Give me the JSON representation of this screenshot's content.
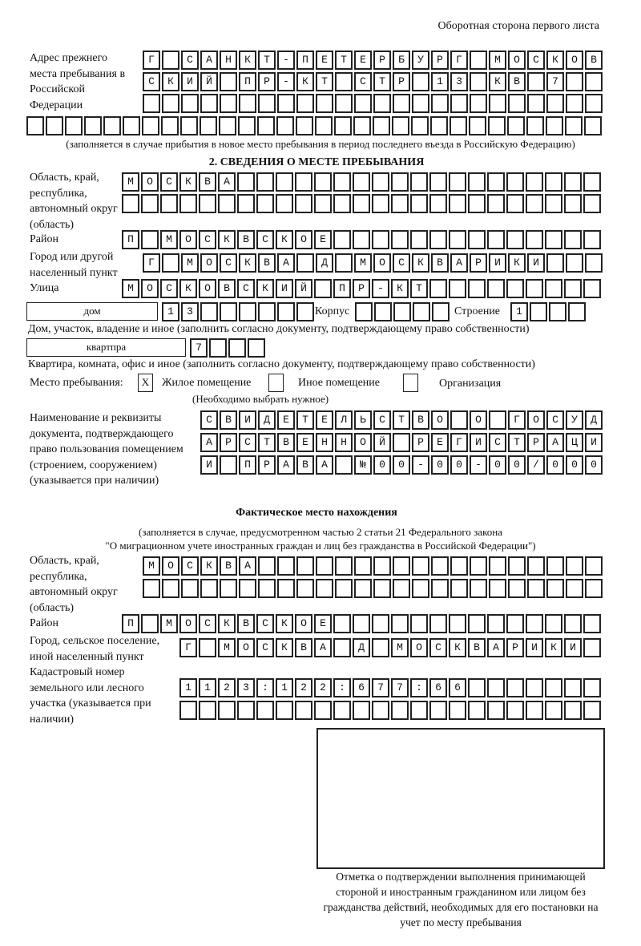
{
  "header": "Оборотная сторона первого листа",
  "prev_address": {
    "label": "Адрес прежнего места пребывания в Российской Федерации",
    "rows": [
      "Г САНКТ-ПЕТЕРБУРГ МОСКОВ",
      "СКИЙ ПР-КТ СТР 13 КВ 7",
      "",
      ""
    ],
    "note": "(заполняется в случае прибытия в новое место пребывания в период последнего въезда в Российскую Федерацию)"
  },
  "section2": {
    "title": "2. СВЕДЕНИЯ О МЕСТЕ ПРЕБЫВАНИЯ",
    "region_label": "Область, край, республика, автономный округ (область)",
    "region_rows": [
      "МОСКВА",
      ""
    ],
    "district_label": "Район",
    "district": "П МОСКВСКОЕ",
    "city_label": "Город или другой населенный пункт",
    "city": "Г МОСКВА Д МОСКВАРИКИ",
    "street_label": "Улица",
    "street": "МОСКОВСКИЙ ПР-КТ",
    "house_type": "дом",
    "house_number": "13",
    "korpus_label": "Корпус",
    "korpus": "",
    "building_label": "Строение",
    "building": "1",
    "house_note": "Дом, участок, владение и иное (заполнить согласно документу, подтверждающему право собственности)",
    "apt_type": "квартпра",
    "apt_number": "7",
    "apt_note": "Квартира, комната, офис и иное (заполнить согласно документу, подтверждающему право собственности)",
    "place_label": "Место пребывания:",
    "place_options": [
      {
        "label": "Жилое помещение",
        "checked": true,
        "mark": "X"
      },
      {
        "label": "Иное помещение",
        "checked": false,
        "mark": ""
      },
      {
        "label": "Организация",
        "checked": false,
        "mark": ""
      }
    ],
    "place_note": "(Необходимо выбрать нужное)",
    "doc_label": "Наименование и реквизиты документа, подтверждающего право пользования помещением (строением, сооружением) (указывается при наличии)",
    "doc_rows": [
      "СВИДЕТЕЛЬСТВО О ГОСУД",
      "АРСТВЕННОЙ РЕГИСТРАЦИ",
      "И ПРАВА №00-00-00/000"
    ]
  },
  "actual": {
    "title": "Фактическое место нахождения",
    "note1": "(заполняется в случае, предусмотренном частью 2 статьи 21 Федерального закона",
    "note2": "\"О миграционном учете иностранных граждан и лиц без гражданства в Российской Федерации\")",
    "region_label": "Область, край, республика, автономный округ (область)",
    "region_rows": [
      "МОСКВА",
      ""
    ],
    "district_label": "Район",
    "district": "П МОСКВСКОЕ",
    "city_label": "Город, сельское поселение, иной населенный пункт",
    "city": "Г МОСКВА Д МОСКВАРИКИ",
    "cadastral_label": "Кадастровый номер земельного или лесного участка (указывается при наличии)",
    "cadastral_rows": [
      "1123:122:677:66",
      ""
    ]
  },
  "stamp_caption": "Отметка о подтверждении выполнения принимающей стороной и иностранным гражданином или лицом без гражданства действий, необходимых для его постановки на учет по месту пребывания"
}
